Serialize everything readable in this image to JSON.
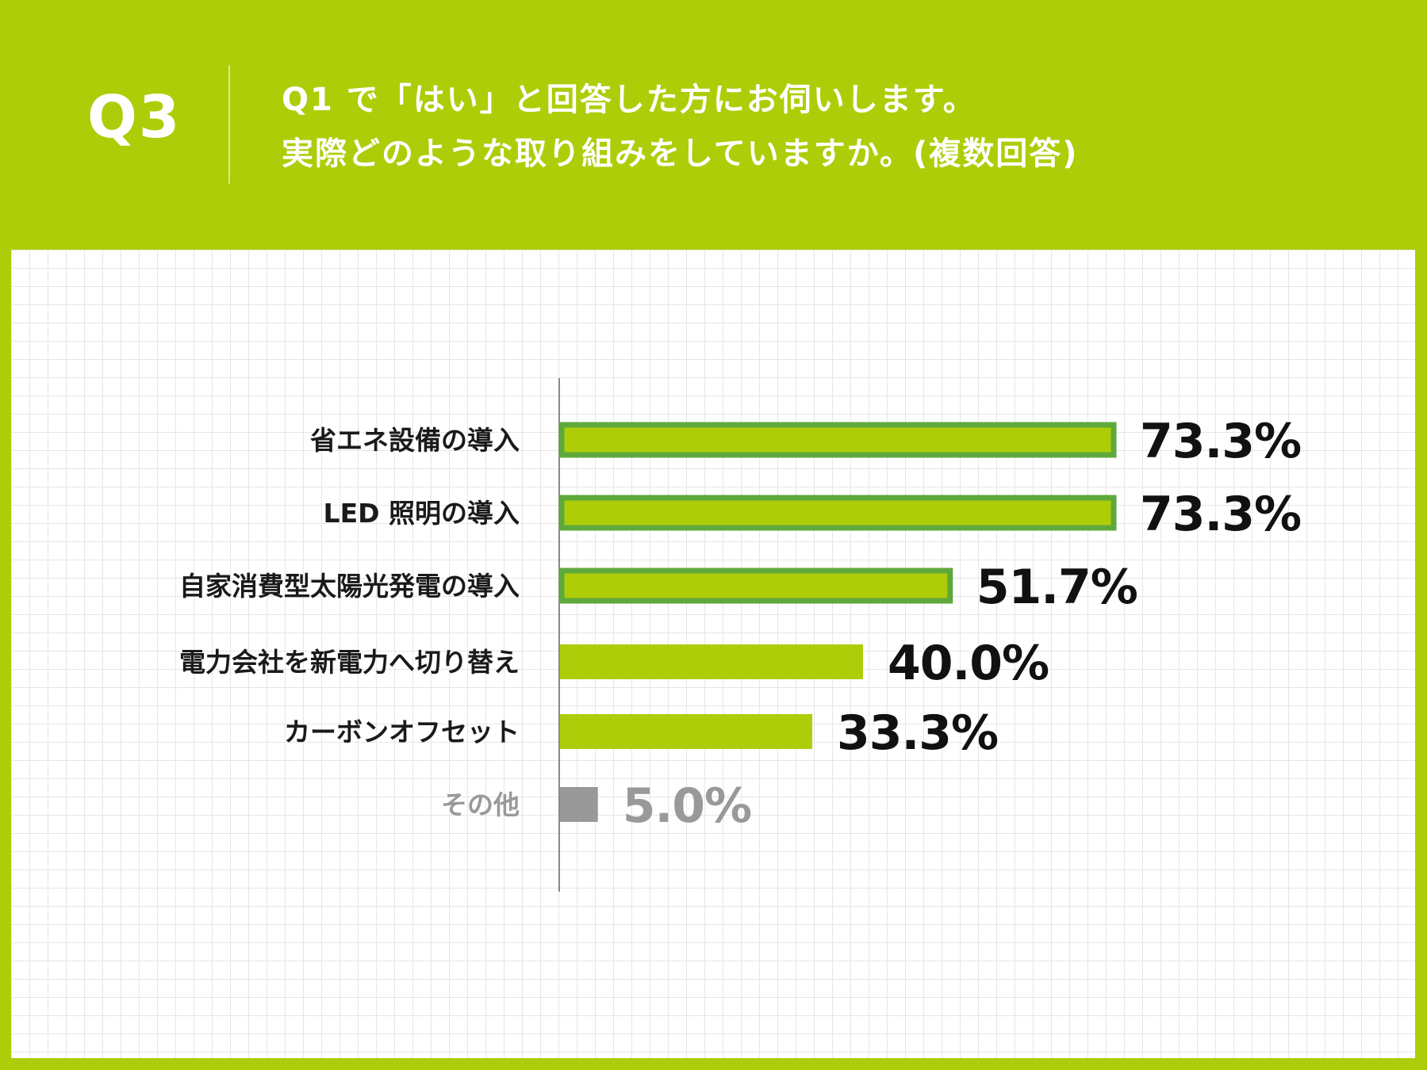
{
  "header": {
    "q_label": "Q3",
    "question_line1": "Q1 で「はい」と回答した方にお伺いします。",
    "question_line2": "実際どのような取り組みをしていますか。(複数回答)"
  },
  "colors": {
    "background": "#adcd08",
    "bar_fill": "#adcd08",
    "bar_highlight_border": "#5fa93c",
    "other_bar": "#999999",
    "label_text": "#1a1a1a",
    "other_text": "#999999"
  },
  "chart_data": {
    "type": "bar",
    "orientation": "horizontal",
    "categories": [
      "省エネ設備の導入",
      "LED 照明の導入",
      "自家消費型太陽光発電の導入",
      "電力会社を新電力へ切り替え",
      "カーボンオフセット",
      "その他"
    ],
    "values": [
      73.3,
      73.3,
      51.7,
      40.0,
      33.3,
      5.0
    ],
    "value_labels": [
      "73.3%",
      "73.3%",
      "51.7%",
      "40.0%",
      "33.3%",
      "5.0%"
    ],
    "highlighted": [
      true,
      true,
      true,
      false,
      false,
      false
    ],
    "xlim": [
      0,
      100
    ],
    "unit": "%",
    "grid": true
  }
}
